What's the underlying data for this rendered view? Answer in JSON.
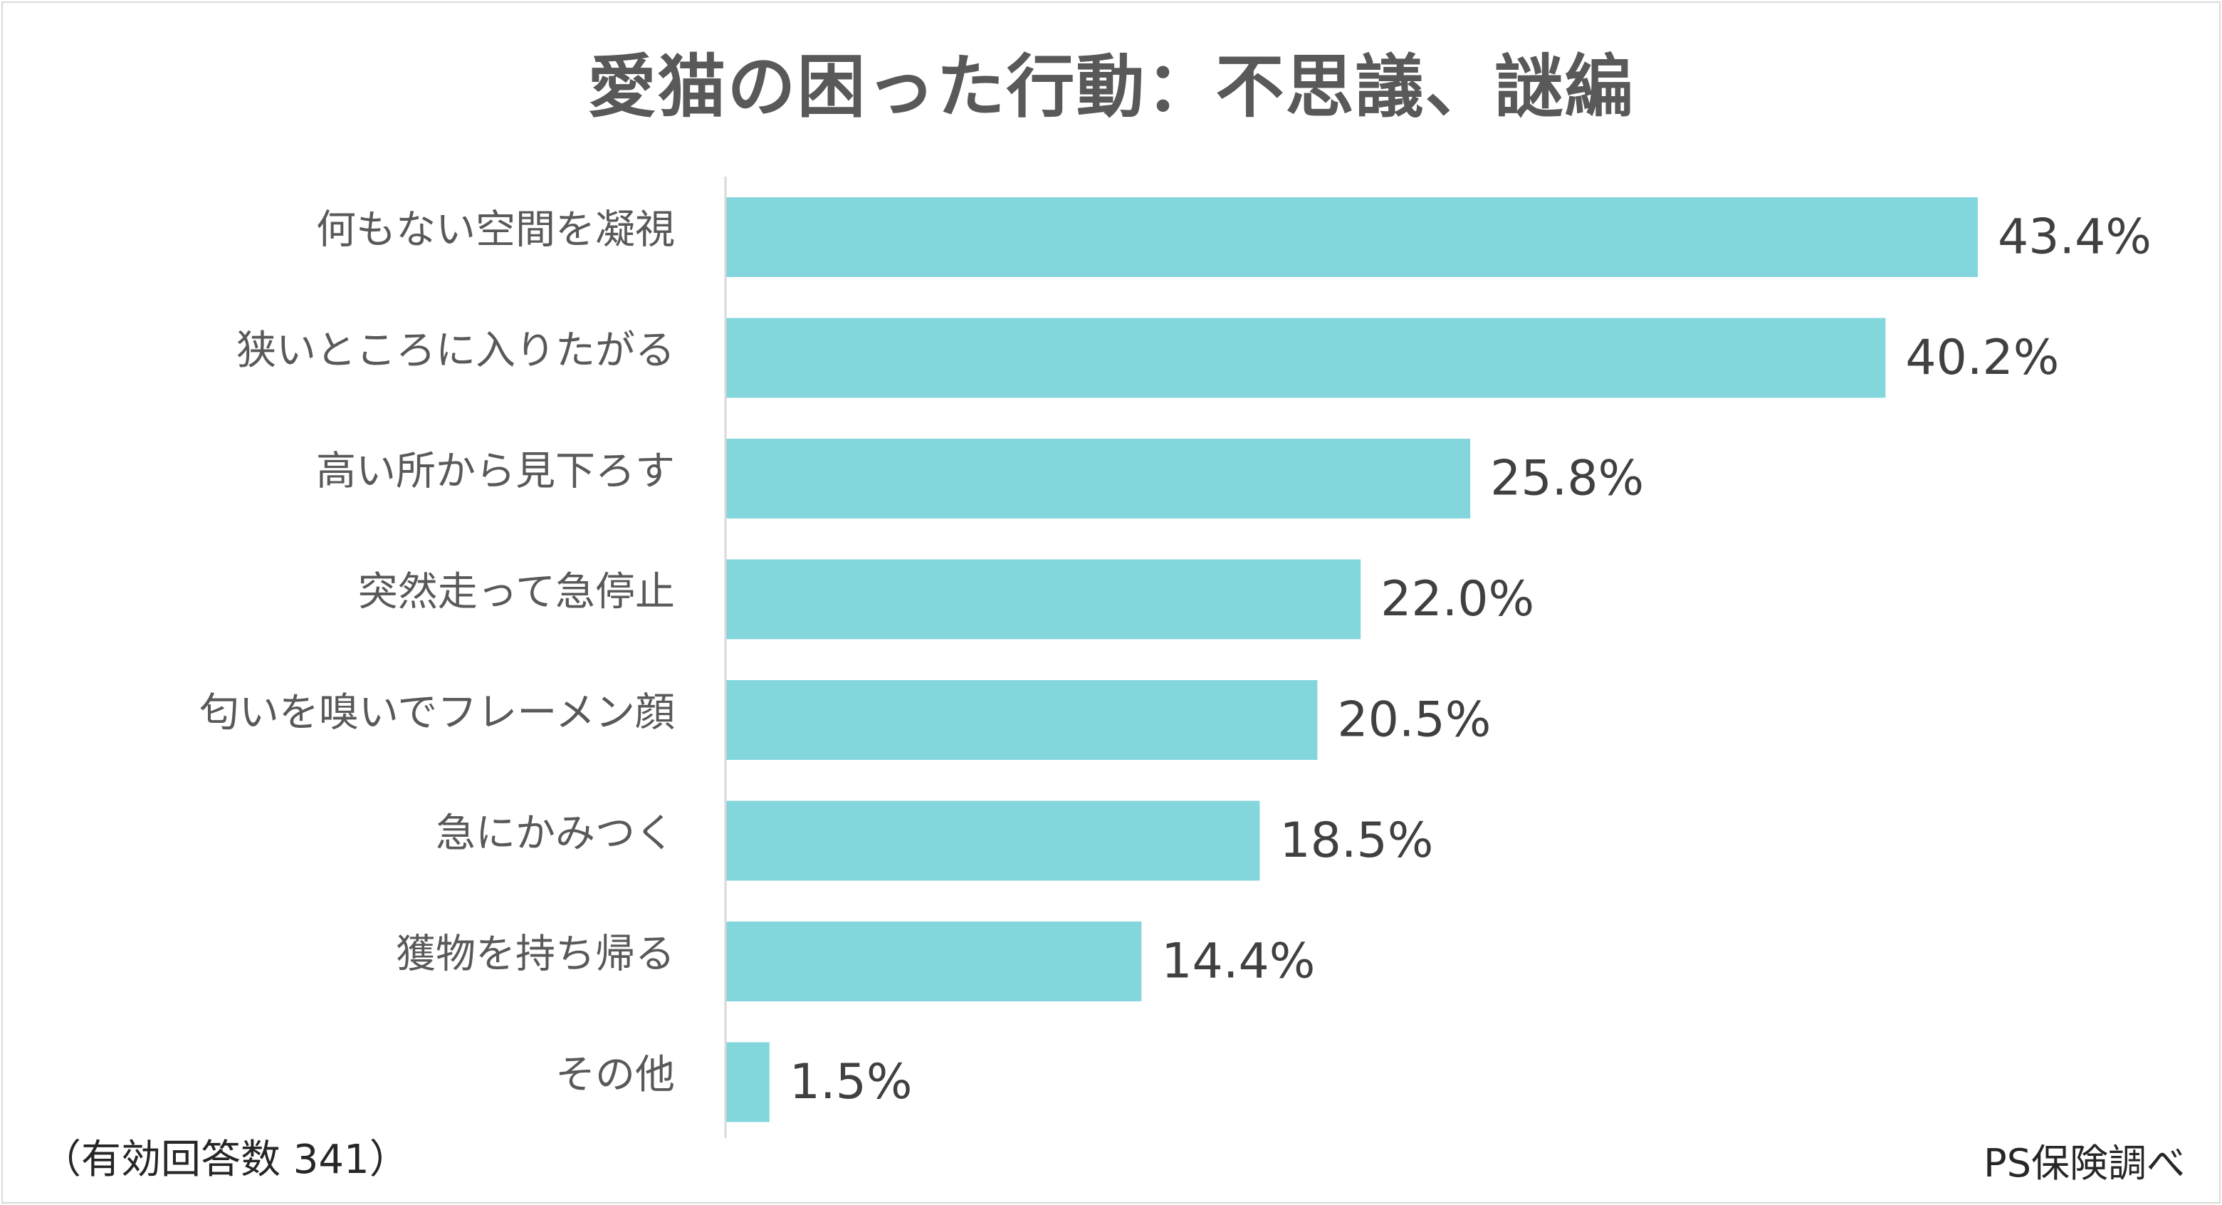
{
  "chart_data": {
    "type": "bar",
    "orientation": "horizontal",
    "title": "愛猫の困った行動：不思議、謎編",
    "categories": [
      "何もない空間を凝視",
      "狭いところに入りたがる",
      "高い所から見下ろす",
      "突然走って急停止",
      "匂いを嗅いでフレーメン顔",
      "急にかみつく",
      "獲物を持ち帰る",
      "その他"
    ],
    "values": [
      43.4,
      40.2,
      25.8,
      22.0,
      20.5,
      18.5,
      14.4,
      1.5
    ],
    "value_labels": [
      "43.4%",
      "40.2%",
      "25.8%",
      "22.0%",
      "20.5%",
      "18.5%",
      "14.4%",
      "1.5%"
    ],
    "unit": "%",
    "xlim": [
      0,
      43.4
    ],
    "grid": false,
    "legend": "none",
    "bar_color": "#82d6dc",
    "axis_color": "#d9d9d9"
  },
  "notes": {
    "sample_size": "（有効回答数 341）",
    "source": "PS保険調べ"
  },
  "colors": {
    "title": "#595959",
    "category_text": "#595959",
    "value_text": "#404040",
    "note_text": "#262626",
    "frame": "#d9d9d9"
  }
}
